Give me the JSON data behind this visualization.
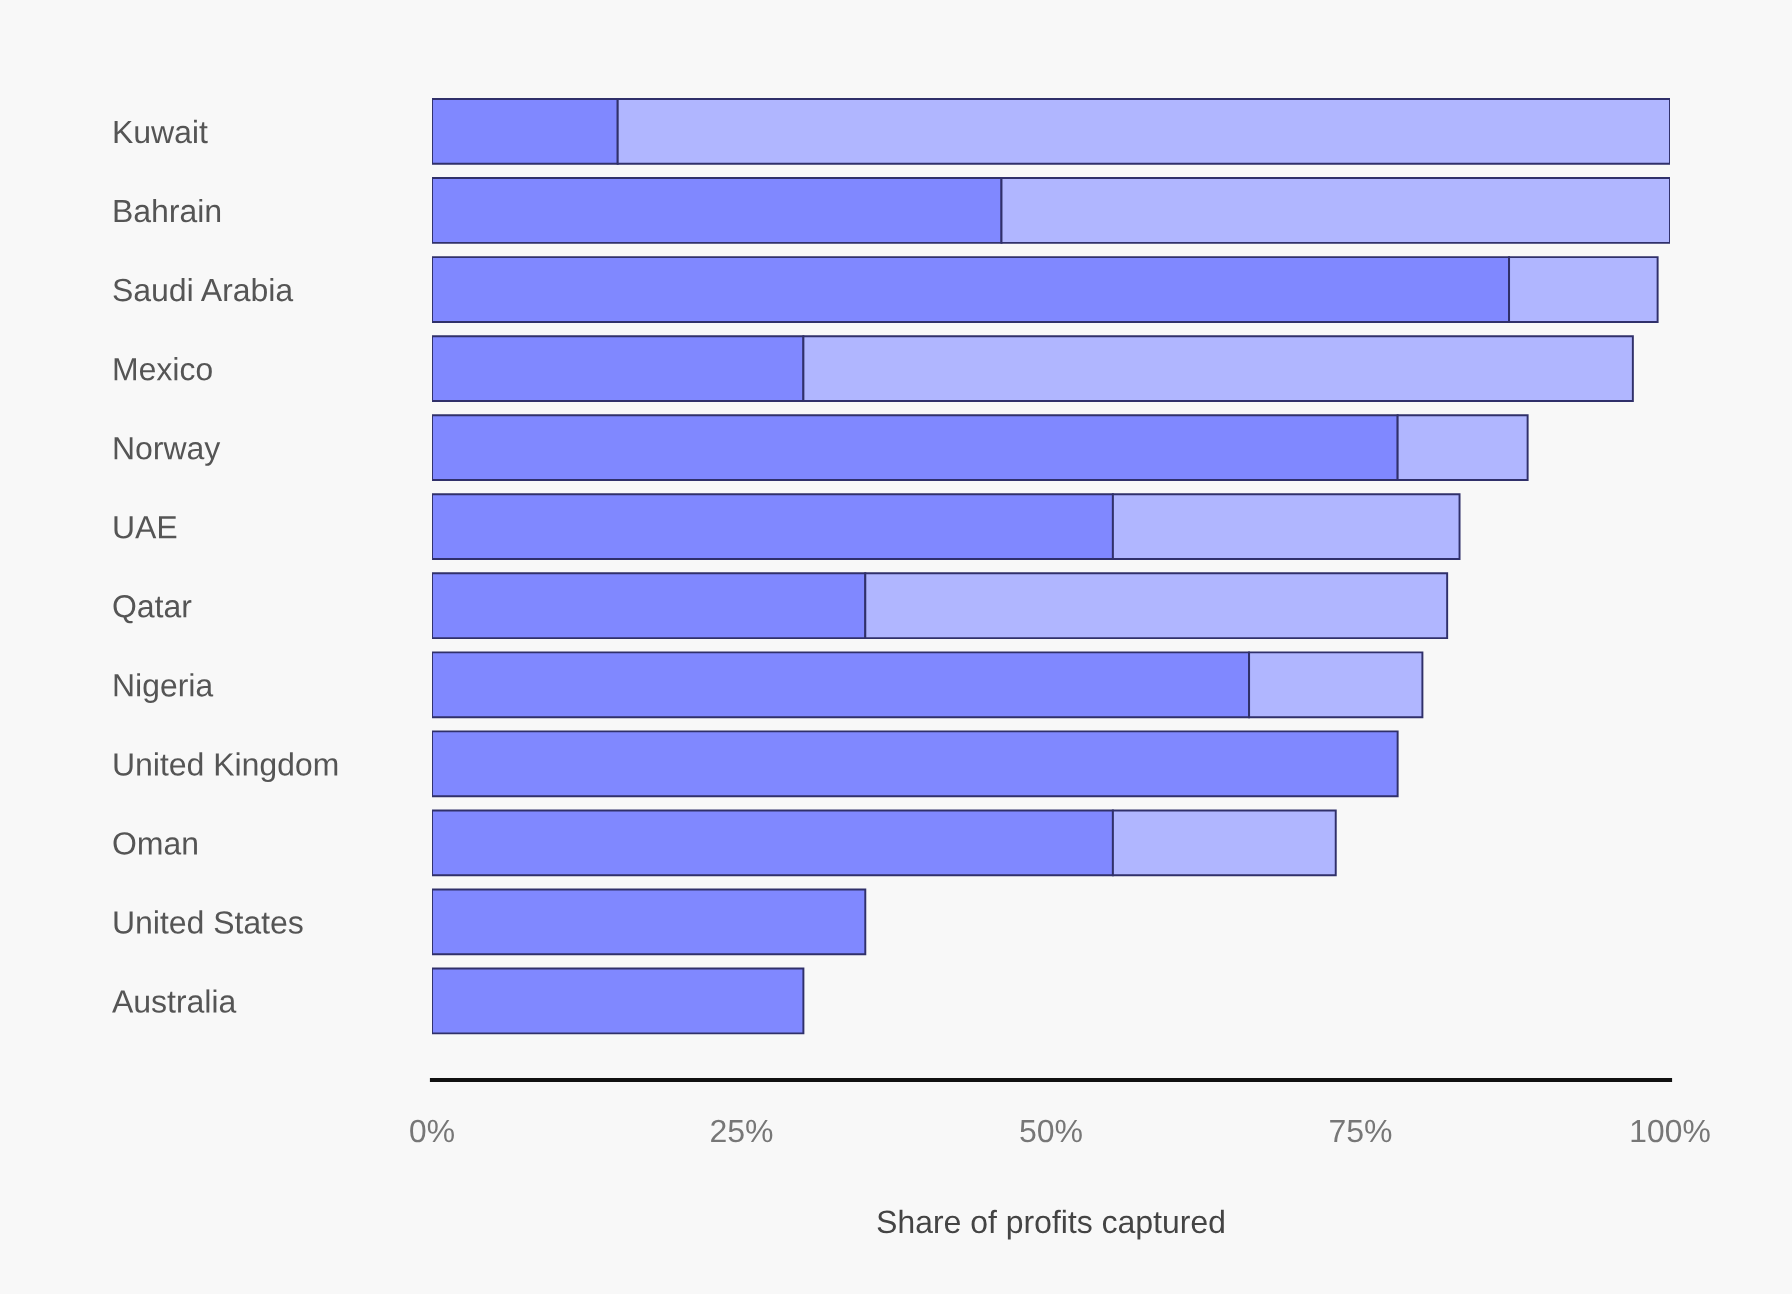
{
  "chart_data": {
    "type": "bar",
    "orientation": "horizontal",
    "stacked": true,
    "xlabel": "Share of profits captured",
    "categories": [
      "Kuwait",
      "Bahrain",
      "Saudi Arabia",
      "Mexico",
      "Norway",
      "UAE",
      "Qatar",
      "Nigeria",
      "United Kingdom",
      "Oman",
      "United States",
      "Australia"
    ],
    "series": [
      {
        "color": "#8088ff",
        "values": [
          15,
          46,
          87,
          30,
          78,
          55,
          35,
          66,
          78,
          55,
          35,
          30
        ]
      },
      {
        "color": "#b0b6ff",
        "values": [
          85,
          54,
          12,
          67,
          10.5,
          28,
          47,
          14,
          null,
          18,
          null,
          null
        ]
      }
    ],
    "xlim": [
      0,
      100
    ],
    "xticks": [
      {
        "value": 0,
        "label": "0%"
      },
      {
        "value": 25,
        "label": "25%"
      },
      {
        "value": 50,
        "label": "50%"
      },
      {
        "value": 75,
        "label": "75%"
      },
      {
        "value": 100,
        "label": "100%"
      }
    ],
    "grid": false,
    "legend": false
  }
}
